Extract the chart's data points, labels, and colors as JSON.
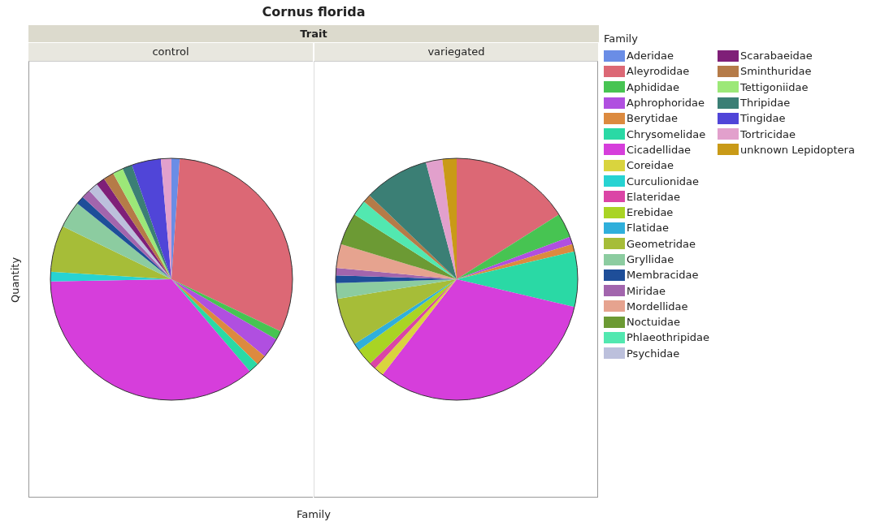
{
  "chart_data": {
    "type": "pie",
    "title": "Cornus florida",
    "annotations": [
      "Trait"
    ],
    "ylabel": "Quantity",
    "xlabel": "Family",
    "legend": "right",
    "legend_title": "Family",
    "categories": [
      "Aderidae",
      "Aleyrodidae",
      "Aphididae",
      "Aphrophoridae",
      "Berytidae",
      "Chrysomelidae",
      "Cicadellidae",
      "Coreidae",
      "Curculionidae",
      "Elateridae",
      "Erebidae",
      "Flatidae",
      "Geometridae",
      "Gryllidae",
      "Membracidae",
      "Miridae",
      "Mordellidae",
      "Noctuidae",
      "Phlaeothripidae",
      "Psychidae",
      "Scarabaeidae",
      "Sminthuridae",
      "Tettigoniidae",
      "Thripidae",
      "Tingidae",
      "Tortricidae",
      "unknown Lepidoptera"
    ],
    "colors": [
      "#6a8de6",
      "#dc6875",
      "#47c452",
      "#b04fe0",
      "#dc8a3f",
      "#2ad9a5",
      "#d63edb",
      "#d9d43e",
      "#27d3d2",
      "#db44a6",
      "#a9d424",
      "#2fafdb",
      "#a6bd38",
      "#8ccca0",
      "#1e4e99",
      "#a265ad",
      "#e6a38f",
      "#6c9a34",
      "#52e8b0",
      "#bcc0dc",
      "#7f1f78",
      "#b57b48",
      "#9ce878",
      "#3b7f75",
      "#5045d8",
      "#e2a0cc",
      "#c99a17"
    ],
    "series": [
      {
        "name": "control",
        "values": [
          1.1,
          31.0,
          1.2,
          2.7,
          1.4,
          1.4,
          35.9,
          0,
          1.3,
          0,
          0,
          0,
          6.2,
          3.6,
          1.1,
          1.2,
          0,
          0,
          0,
          1.3,
          1.2,
          1.4,
          1.4,
          1.3,
          3.9,
          1.4,
          0
        ]
      },
      {
        "name": "variegated",
        "values": [
          0,
          16.0,
          3.3,
          1.0,
          1.0,
          7.4,
          31.8,
          1.3,
          0,
          0.9,
          2.3,
          1.0,
          6.4,
          2.1,
          1.0,
          1.0,
          3.2,
          4.3,
          2.1,
          0,
          0,
          1.1,
          0,
          8.7,
          0,
          2.2,
          1.9
        ]
      }
    ]
  }
}
